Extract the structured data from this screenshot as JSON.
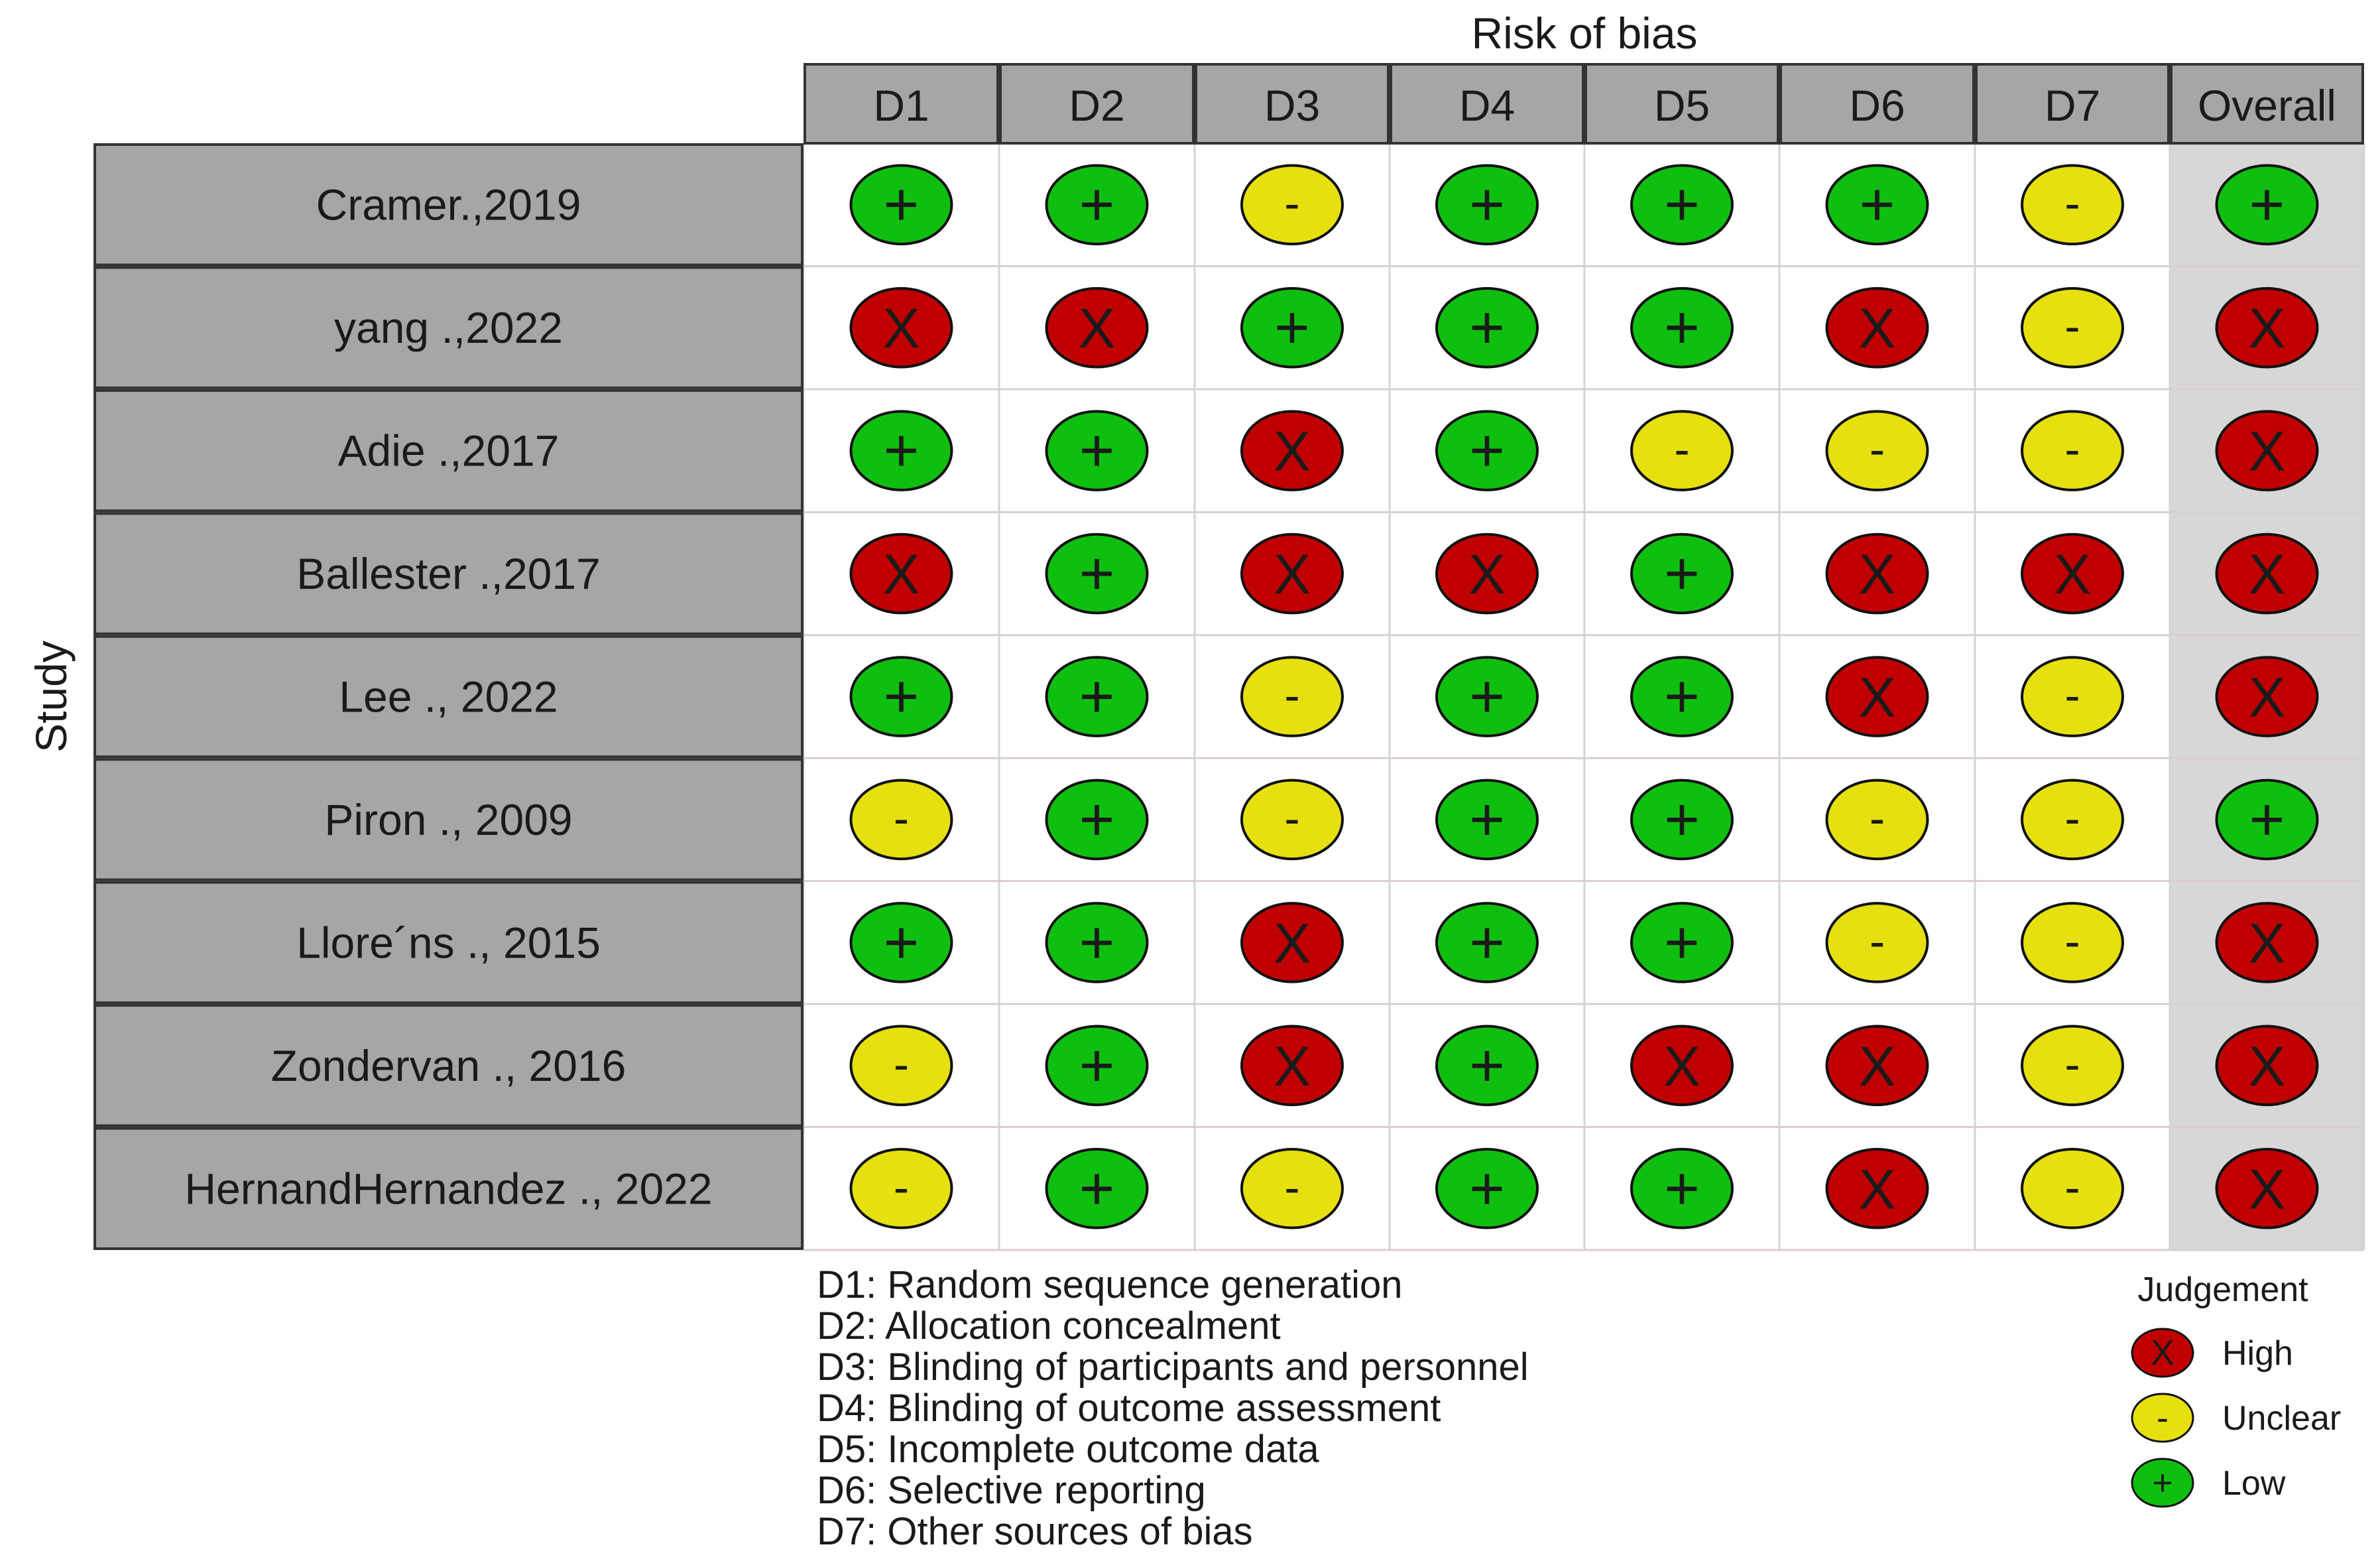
{
  "chart_data": {
    "type": "table",
    "title": "Risk of bias",
    "ylabel": "Study",
    "domains": [
      "D1",
      "D2",
      "D3",
      "D4",
      "D5",
      "D6",
      "D7",
      "Overall"
    ],
    "studies": [
      {
        "name": "Cramer.,2019",
        "judgements": [
          "Low",
          "Low",
          "Unclear",
          "Low",
          "Low",
          "Low",
          "Unclear",
          "Low"
        ]
      },
      {
        "name": "yang .,2022",
        "judgements": [
          "High",
          "High",
          "Low",
          "Low",
          "Low",
          "High",
          "Unclear",
          "High"
        ]
      },
      {
        "name": "Adie .,2017",
        "judgements": [
          "Low",
          "Low",
          "High",
          "Low",
          "Unclear",
          "Unclear",
          "Unclear",
          "High"
        ]
      },
      {
        "name": "Ballester .,2017",
        "judgements": [
          "High",
          "Low",
          "High",
          "High",
          "Low",
          "High",
          "High",
          "High"
        ]
      },
      {
        "name": "Lee ., 2022",
        "judgements": [
          "Low",
          "Low",
          "Unclear",
          "Low",
          "Low",
          "High",
          "Unclear",
          "High"
        ]
      },
      {
        "name": "Piron ., 2009",
        "judgements": [
          "Unclear",
          "Low",
          "Unclear",
          "Low",
          "Low",
          "Unclear",
          "Unclear",
          "Low"
        ]
      },
      {
        "name": "Llore´ns ., 2015",
        "judgements": [
          "Low",
          "Low",
          "High",
          "Low",
          "Low",
          "Unclear",
          "Unclear",
          "High"
        ]
      },
      {
        "name": "Zondervan ., 2016",
        "judgements": [
          "Unclear",
          "Low",
          "High",
          "Low",
          "High",
          "High",
          "Unclear",
          "High"
        ]
      },
      {
        "name": "HernandHernandez ., 2022",
        "judgements": [
          "Unclear",
          "Low",
          "Unclear",
          "Low",
          "Low",
          "High",
          "Unclear",
          "High"
        ]
      }
    ],
    "domain_key": [
      "D1: Random sequence generation",
      "D2: Allocation concealment",
      "D3: Blinding of participants and personnel",
      "D4: Blinding of outcome assessment",
      "D5: Incomplete outcome data",
      "D6: Selective reporting",
      "D7: Other sources of bias"
    ],
    "legend": {
      "title": "Judgement",
      "placement": "bottom-right",
      "items": [
        {
          "label": "High",
          "symbol": "X",
          "color": "#c00000"
        },
        {
          "label": "Unclear",
          "symbol": "-",
          "color": "#e6e00f"
        },
        {
          "label": "Low",
          "symbol": "+",
          "color": "#0fbf0f"
        }
      ]
    },
    "colors": {
      "header_fill": "#a6a6a6",
      "study_fill": "#a6a6a6",
      "overall_column_fill": "#d7d7d7"
    }
  }
}
